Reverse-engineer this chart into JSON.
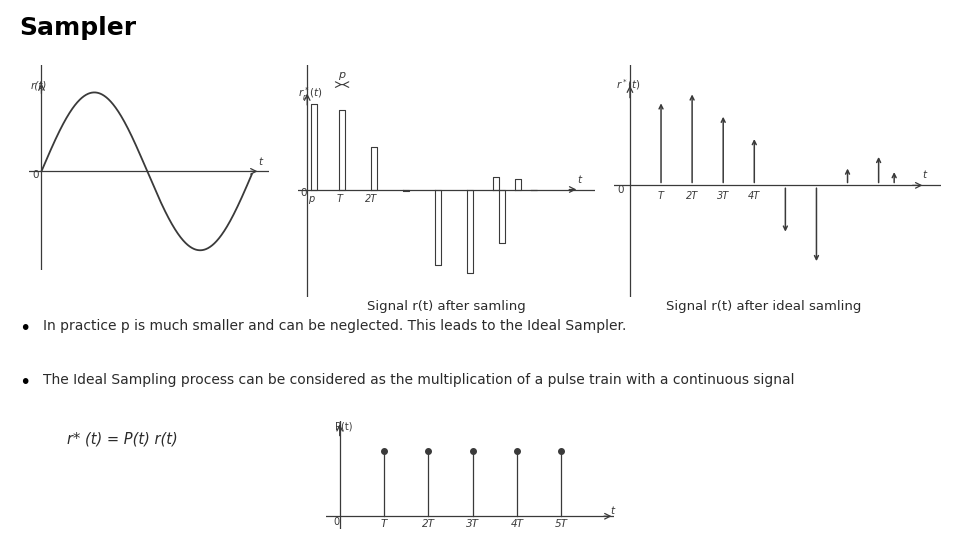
{
  "title": "Sampler",
  "title_fontsize": 18,
  "title_fontweight": "bold",
  "background_color": "#ffffff",
  "bullet1": "In practice p is much smaller and can be neglected. This leads to the Ideal Sampler.",
  "bullet2": "The Ideal Sampling process can be considered as the multiplication of a pulse train with a continuous signal",
  "label_after_samling": "Signal r(t) after samling",
  "label_after_ideal": "Signal r(t) after ideal samling",
  "formula": "r* (t) = P(t) r(t)",
  "bottom_xticks": [
    "0",
    "T",
    "2T",
    "3T",
    "4T",
    "5T"
  ],
  "text_color": "#2b2b2b",
  "line_color": "#3a3a3a"
}
